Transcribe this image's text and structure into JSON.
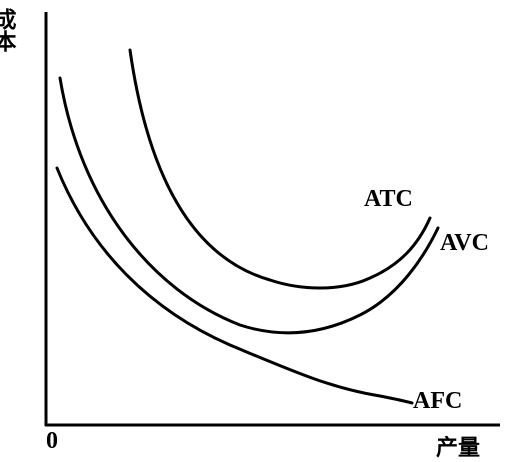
{
  "axes": {
    "y_label": "成本",
    "x_label": "产量",
    "origin": "0"
  },
  "curves": [
    {
      "label": "ATC"
    },
    {
      "label": "AVC"
    },
    {
      "label": "AFC"
    }
  ]
}
